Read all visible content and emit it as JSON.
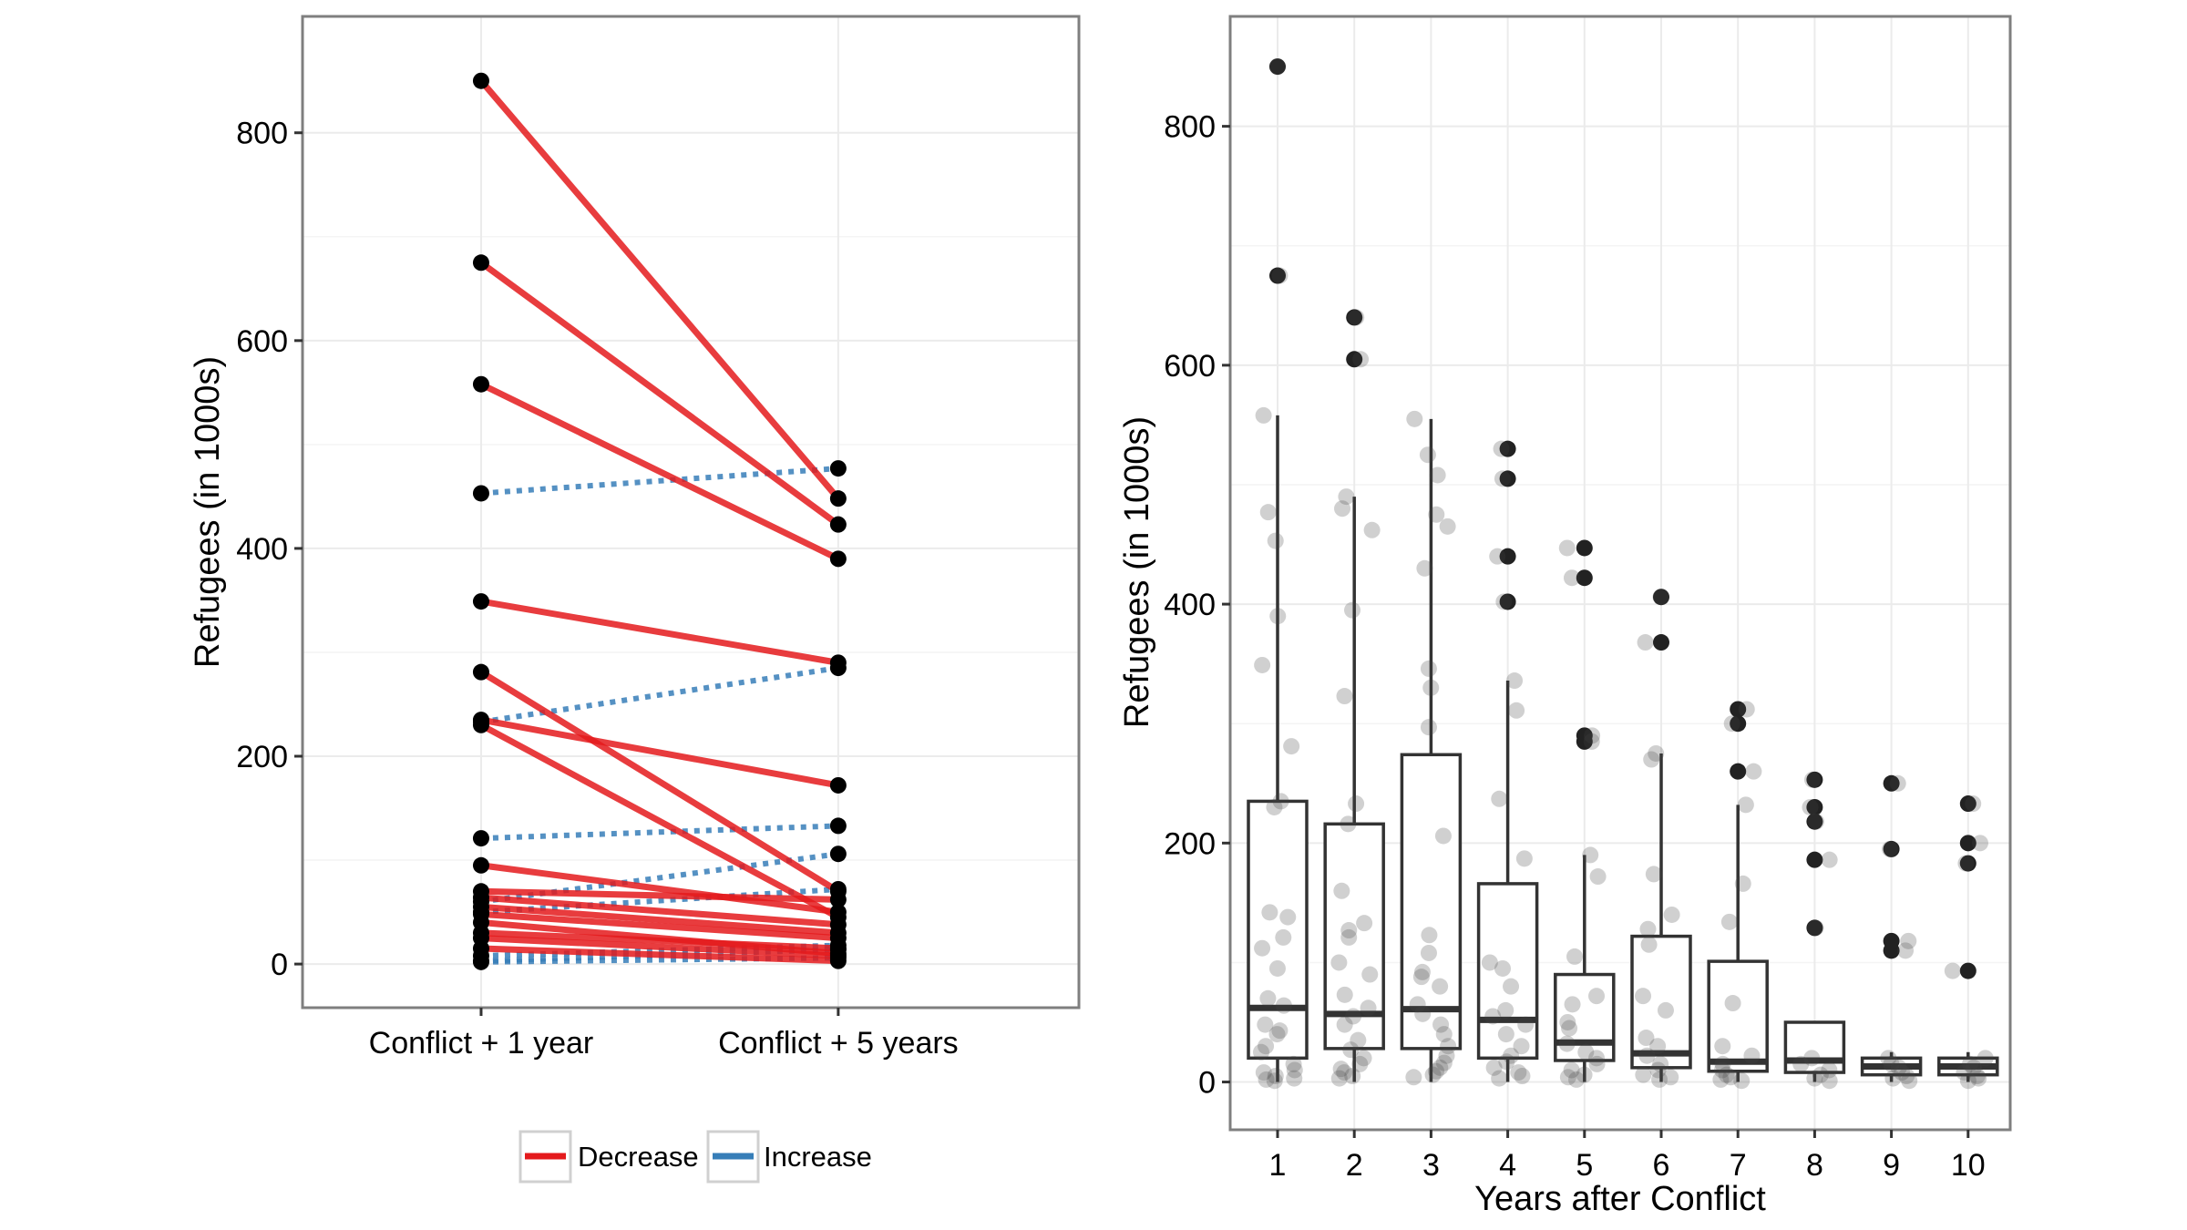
{
  "chart_data": [
    {
      "type": "line",
      "subtype": "slope",
      "categories": [
        "Conflict + 1 year",
        "Conflict + 5 years"
      ],
      "ylabel": "Refugees (in 1000s)",
      "xlabel": "",
      "ylim": [
        -42,
        912
      ],
      "yticks": [
        0,
        200,
        400,
        600,
        800
      ],
      "grid": true,
      "legend": {
        "position": "bottom",
        "entries": [
          {
            "label": "Decrease",
            "color": "#e41a1c",
            "style": "solid"
          },
          {
            "label": "Increase",
            "color": "#377eb8",
            "style": "dotted"
          }
        ]
      },
      "series": [
        {
          "name": "Decrease",
          "pairs": [
            [
              850,
              448
            ],
            [
              675,
              423
            ],
            [
              558,
              390
            ],
            [
              349,
              290
            ],
            [
              281,
              70
            ],
            [
              235,
              172
            ],
            [
              230,
              45
            ],
            [
              95,
              50
            ],
            [
              70,
              62
            ],
            [
              64,
              38
            ],
            [
              55,
              30
            ],
            [
              48,
              25
            ],
            [
              40,
              10
            ],
            [
              30,
              15
            ],
            [
              25,
              8
            ],
            [
              15,
              3
            ]
          ]
        },
        {
          "name": "Increase",
          "pairs": [
            [
              453,
              477
            ],
            [
              233,
              285
            ],
            [
              121,
              133
            ],
            [
              60,
              106
            ],
            [
              50,
              72
            ],
            [
              3,
              14
            ],
            [
              8,
              18
            ],
            [
              2,
              6
            ]
          ]
        }
      ]
    },
    {
      "type": "box",
      "categories": [
        "1",
        "2",
        "3",
        "4",
        "5",
        "6",
        "7",
        "8",
        "9",
        "10"
      ],
      "xlabel": "Years after Conflict",
      "ylabel": "Refugees (in 1000s)",
      "ylim": [
        -40,
        892
      ],
      "yticks": [
        0,
        200,
        400,
        600,
        800
      ],
      "grid": true,
      "boxes": [
        {
          "year": "1",
          "q1": 20,
          "median": 62,
          "q3": 235,
          "whisker_low": 0,
          "whisker_high": 558,
          "outliers": [
            675,
            850
          ]
        },
        {
          "year": "2",
          "q1": 28,
          "median": 57,
          "q3": 216,
          "whisker_low": 0,
          "whisker_high": 490,
          "outliers": [
            605,
            640
          ]
        },
        {
          "year": "3",
          "q1": 28,
          "median": 61,
          "q3": 274,
          "whisker_low": 0,
          "whisker_high": 555,
          "outliers": []
        },
        {
          "year": "4",
          "q1": 20,
          "median": 52,
          "q3": 166,
          "whisker_low": 0,
          "whisker_high": 336,
          "outliers": [
            402,
            440,
            505,
            530
          ]
        },
        {
          "year": "5",
          "q1": 18,
          "median": 33,
          "q3": 90,
          "whisker_low": 0,
          "whisker_high": 190,
          "outliers": [
            285,
            290,
            422,
            447
          ]
        },
        {
          "year": "6",
          "q1": 12,
          "median": 24,
          "q3": 122,
          "whisker_low": 0,
          "whisker_high": 275,
          "outliers": [
            368,
            406
          ]
        },
        {
          "year": "7",
          "q1": 9,
          "median": 17,
          "q3": 101,
          "whisker_low": 0,
          "whisker_high": 232,
          "outliers": [
            260,
            300,
            312
          ]
        },
        {
          "year": "8",
          "q1": 8,
          "median": 18,
          "q3": 50,
          "whisker_low": 0,
          "whisker_high": 50,
          "outliers": [
            129,
            186,
            218,
            230,
            253
          ]
        },
        {
          "year": "9",
          "q1": 6,
          "median": 13,
          "q3": 20,
          "whisker_low": 0,
          "whisker_high": 25,
          "outliers": [
            110,
            118,
            195,
            250
          ]
        },
        {
          "year": "10",
          "q1": 6,
          "median": 13,
          "q3": 20,
          "whisker_low": 0,
          "whisker_high": 25,
          "outliers": [
            93,
            183,
            200,
            233
          ]
        }
      ],
      "jitter_points": {
        "1": [
          850,
          675,
          558,
          477,
          453,
          390,
          349,
          281,
          235,
          230,
          142,
          138,
          121,
          112,
          95,
          70,
          64,
          48,
          43,
          40,
          30,
          25,
          15,
          10,
          8,
          5,
          3,
          2,
          1
        ],
        "2": [
          640,
          605,
          490,
          480,
          462,
          395,
          323,
          233,
          216,
          160,
          133,
          127,
          121,
          100,
          90,
          73,
          62,
          55,
          48,
          35,
          27,
          20,
          15,
          11,
          8,
          5,
          3
        ],
        "3": [
          555,
          525,
          508,
          475,
          465,
          430,
          346,
          330,
          297,
          206,
          123,
          108,
          92,
          88,
          80,
          65,
          57,
          48,
          40,
          30,
          22,
          16,
          12,
          9,
          6,
          4
        ],
        "4": [
          530,
          505,
          440,
          402,
          336,
          311,
          237,
          187,
          100,
          95,
          80,
          60,
          55,
          48,
          40,
          30,
          22,
          17,
          12,
          8,
          5,
          3
        ],
        "5": [
          447,
          422,
          290,
          285,
          190,
          172,
          105,
          72,
          65,
          50,
          45,
          32,
          25,
          20,
          15,
          10,
          6,
          4,
          2
        ],
        "6": [
          406,
          368,
          275,
          270,
          174,
          140,
          128,
          115,
          72,
          60,
          37,
          30,
          22,
          15,
          10,
          6,
          4,
          2
        ],
        "7": [
          312,
          300,
          260,
          232,
          166,
          134,
          66,
          30,
          22,
          15,
          10,
          6,
          4,
          2,
          1
        ],
        "8": [
          253,
          230,
          218,
          186,
          129,
          20,
          15,
          10,
          6,
          3,
          1
        ],
        "9": [
          250,
          195,
          118,
          110,
          20,
          15,
          12,
          8,
          5,
          3,
          1
        ],
        "10": [
          233,
          200,
          183,
          93,
          20,
          15,
          12,
          8,
          5,
          3,
          1
        ]
      }
    }
  ]
}
